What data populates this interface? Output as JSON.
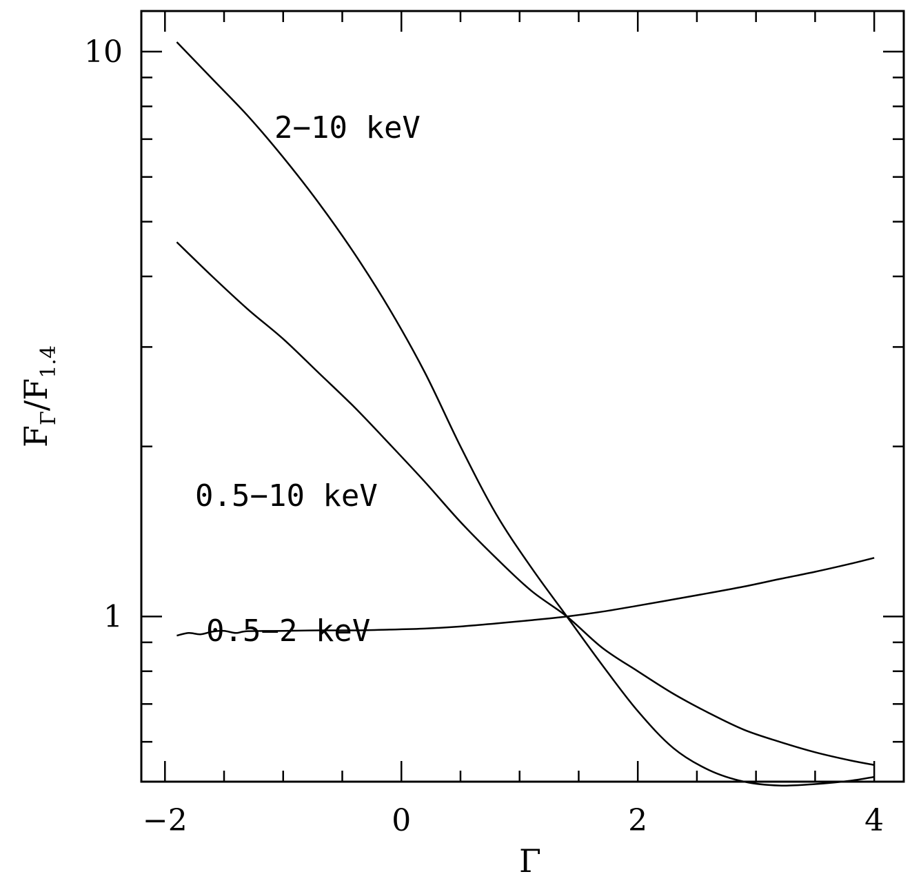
{
  "chart_data": {
    "type": "line",
    "title": "",
    "xlabel": "Γ",
    "ylabel": {
      "main": "F",
      "sub1": "Γ",
      "sep": "/F",
      "sub2": "1.4"
    },
    "xlim": [
      -2.2,
      4.25
    ],
    "ylim": [
      0.51,
      11.8
    ],
    "yscale": "log",
    "grid": false,
    "legend": "none",
    "x_ticks_major": [
      -2,
      0,
      2,
      4
    ],
    "x_tick_labels": [
      "−2",
      "0",
      "2",
      "4"
    ],
    "x_ticks_minor": [
      -1.5,
      -1,
      -0.5,
      0.5,
      1,
      1.5,
      2.5,
      3,
      3.5
    ],
    "y_ticks_major": [
      1,
      10
    ],
    "y_tick_labels": [
      "1",
      "10"
    ],
    "y_ticks_minor": [
      0.6,
      0.7,
      0.8,
      0.9,
      2,
      3,
      4,
      5,
      6,
      7,
      8,
      9
    ],
    "series": [
      {
        "name": "2−10 keV",
        "x": [
          -1.9,
          -1.6,
          -1.3,
          -1.0,
          -0.7,
          -0.4,
          -0.1,
          0.2,
          0.5,
          0.8,
          1.1,
          1.4,
          1.7,
          2.0,
          2.3,
          2.6,
          2.9,
          3.2,
          3.5,
          3.8,
          4.0
        ],
        "y": [
          10.4,
          8.95,
          7.7,
          6.5,
          5.4,
          4.4,
          3.5,
          2.7,
          2.0,
          1.52,
          1.22,
          1.0,
          0.82,
          0.68,
          0.585,
          0.535,
          0.51,
          0.502,
          0.505,
          0.512,
          0.52
        ]
      },
      {
        "name": "0.5−10 keV",
        "x": [
          -1.9,
          -1.6,
          -1.3,
          -1.0,
          -0.7,
          -0.4,
          -0.1,
          0.2,
          0.5,
          0.8,
          1.1,
          1.4,
          1.7,
          2.0,
          2.3,
          2.6,
          2.9,
          3.2,
          3.5,
          3.8,
          4.0
        ],
        "y": [
          4.6,
          4.0,
          3.5,
          3.1,
          2.7,
          2.35,
          2.02,
          1.73,
          1.47,
          1.27,
          1.11,
          1.0,
          0.88,
          0.8,
          0.73,
          0.675,
          0.63,
          0.6,
          0.575,
          0.556,
          0.546
        ]
      },
      {
        "name": "0.5−2 keV",
        "x": [
          -1.9,
          -1.8,
          -1.7,
          -1.6,
          -1.5,
          -1.4,
          -1.3,
          -1.0,
          -0.7,
          -0.4,
          -0.1,
          0.2,
          0.5,
          0.8,
          1.1,
          1.4,
          1.7,
          2.0,
          2.3,
          2.6,
          2.9,
          3.2,
          3.5,
          3.8,
          4.0
        ],
        "y": [
          0.925,
          0.935,
          0.93,
          0.94,
          0.943,
          0.935,
          0.942,
          0.943,
          0.945,
          0.945,
          0.948,
          0.952,
          0.96,
          0.972,
          0.985,
          1.0,
          1.02,
          1.045,
          1.072,
          1.1,
          1.13,
          1.165,
          1.2,
          1.24,
          1.27
        ]
      }
    ],
    "annotations": [
      {
        "text": "2−10 keV",
        "series": 0
      },
      {
        "text": "0.5−10 keV",
        "series": 1
      },
      {
        "text": "0.5−2 keV",
        "series": 2
      }
    ]
  }
}
